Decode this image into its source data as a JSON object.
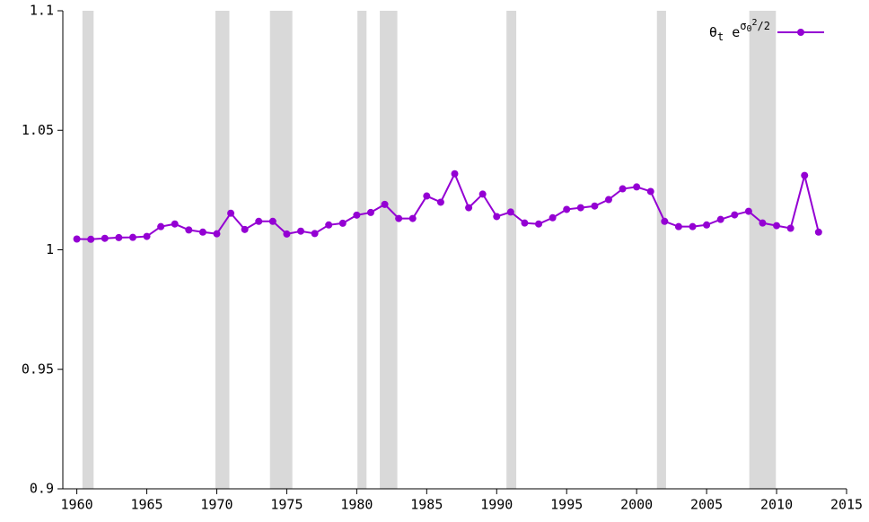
{
  "chart_data": {
    "type": "line",
    "x": [
      1960,
      1961,
      1962,
      1963,
      1964,
      1965,
      1966,
      1967,
      1968,
      1969,
      1970,
      1971,
      1972,
      1973,
      1974,
      1975,
      1976,
      1977,
      1978,
      1979,
      1980,
      1981,
      1982,
      1983,
      1984,
      1985,
      1986,
      1987,
      1988,
      1989,
      1990,
      1991,
      1992,
      1993,
      1994,
      1995,
      1996,
      1997,
      1998,
      1999,
      2000,
      2001,
      2002,
      2003,
      2004,
      2005,
      2006,
      2007,
      2008,
      2009,
      2010,
      2011,
      2012,
      2013
    ],
    "series": [
      {
        "name_parts": [
          [
            "θ",
            "base"
          ],
          [
            "t",
            "sub"
          ],
          [
            " e",
            "base"
          ],
          [
            "σ",
            "sup"
          ],
          [
            "0",
            "supsub"
          ],
          [
            "2",
            "supsup"
          ],
          [
            "/2",
            "sup"
          ]
        ],
        "color": "#9400d3",
        "values": [
          1.0045,
          1.0044,
          1.0048,
          1.0051,
          1.0052,
          1.0056,
          1.0097,
          1.0108,
          1.0083,
          1.0074,
          1.0067,
          1.0153,
          1.0085,
          1.0119,
          1.0119,
          1.0066,
          1.0078,
          1.0068,
          1.0104,
          1.0111,
          1.0145,
          1.0156,
          1.019,
          1.0131,
          1.0131,
          1.0225,
          1.0199,
          1.0318,
          1.0176,
          1.0233,
          1.0139,
          1.0158,
          1.0112,
          1.0108,
          1.0134,
          1.0169,
          1.0176,
          1.0183,
          1.021,
          1.0255,
          1.0263,
          1.0244,
          1.0119,
          1.0097,
          1.0097,
          1.0104,
          1.0127,
          1.0146,
          1.0161,
          1.0112,
          1.0101,
          1.009,
          1.0311,
          1.0074
        ]
      }
    ],
    "shaded_regions": [
      [
        1960.4,
        1961.2
      ],
      [
        1969.9,
        1970.9
      ],
      [
        1973.8,
        1975.4
      ],
      [
        1980.05,
        1980.7
      ],
      [
        1981.65,
        1982.9
      ],
      [
        1990.7,
        1991.4
      ],
      [
        2001.45,
        2002.1
      ],
      [
        2008.05,
        2009.95
      ]
    ],
    "shade_color": "#d9d9d9",
    "xlim": [
      1959,
      2015
    ],
    "xticks": [
      1960,
      1965,
      1970,
      1975,
      1980,
      1985,
      1990,
      1995,
      2000,
      2005,
      2010,
      2015
    ],
    "ylim": [
      0.9,
      1.1
    ],
    "yticks": [
      0.9,
      0.95,
      1,
      1.05,
      1.1
    ],
    "legend": "top-right"
  }
}
